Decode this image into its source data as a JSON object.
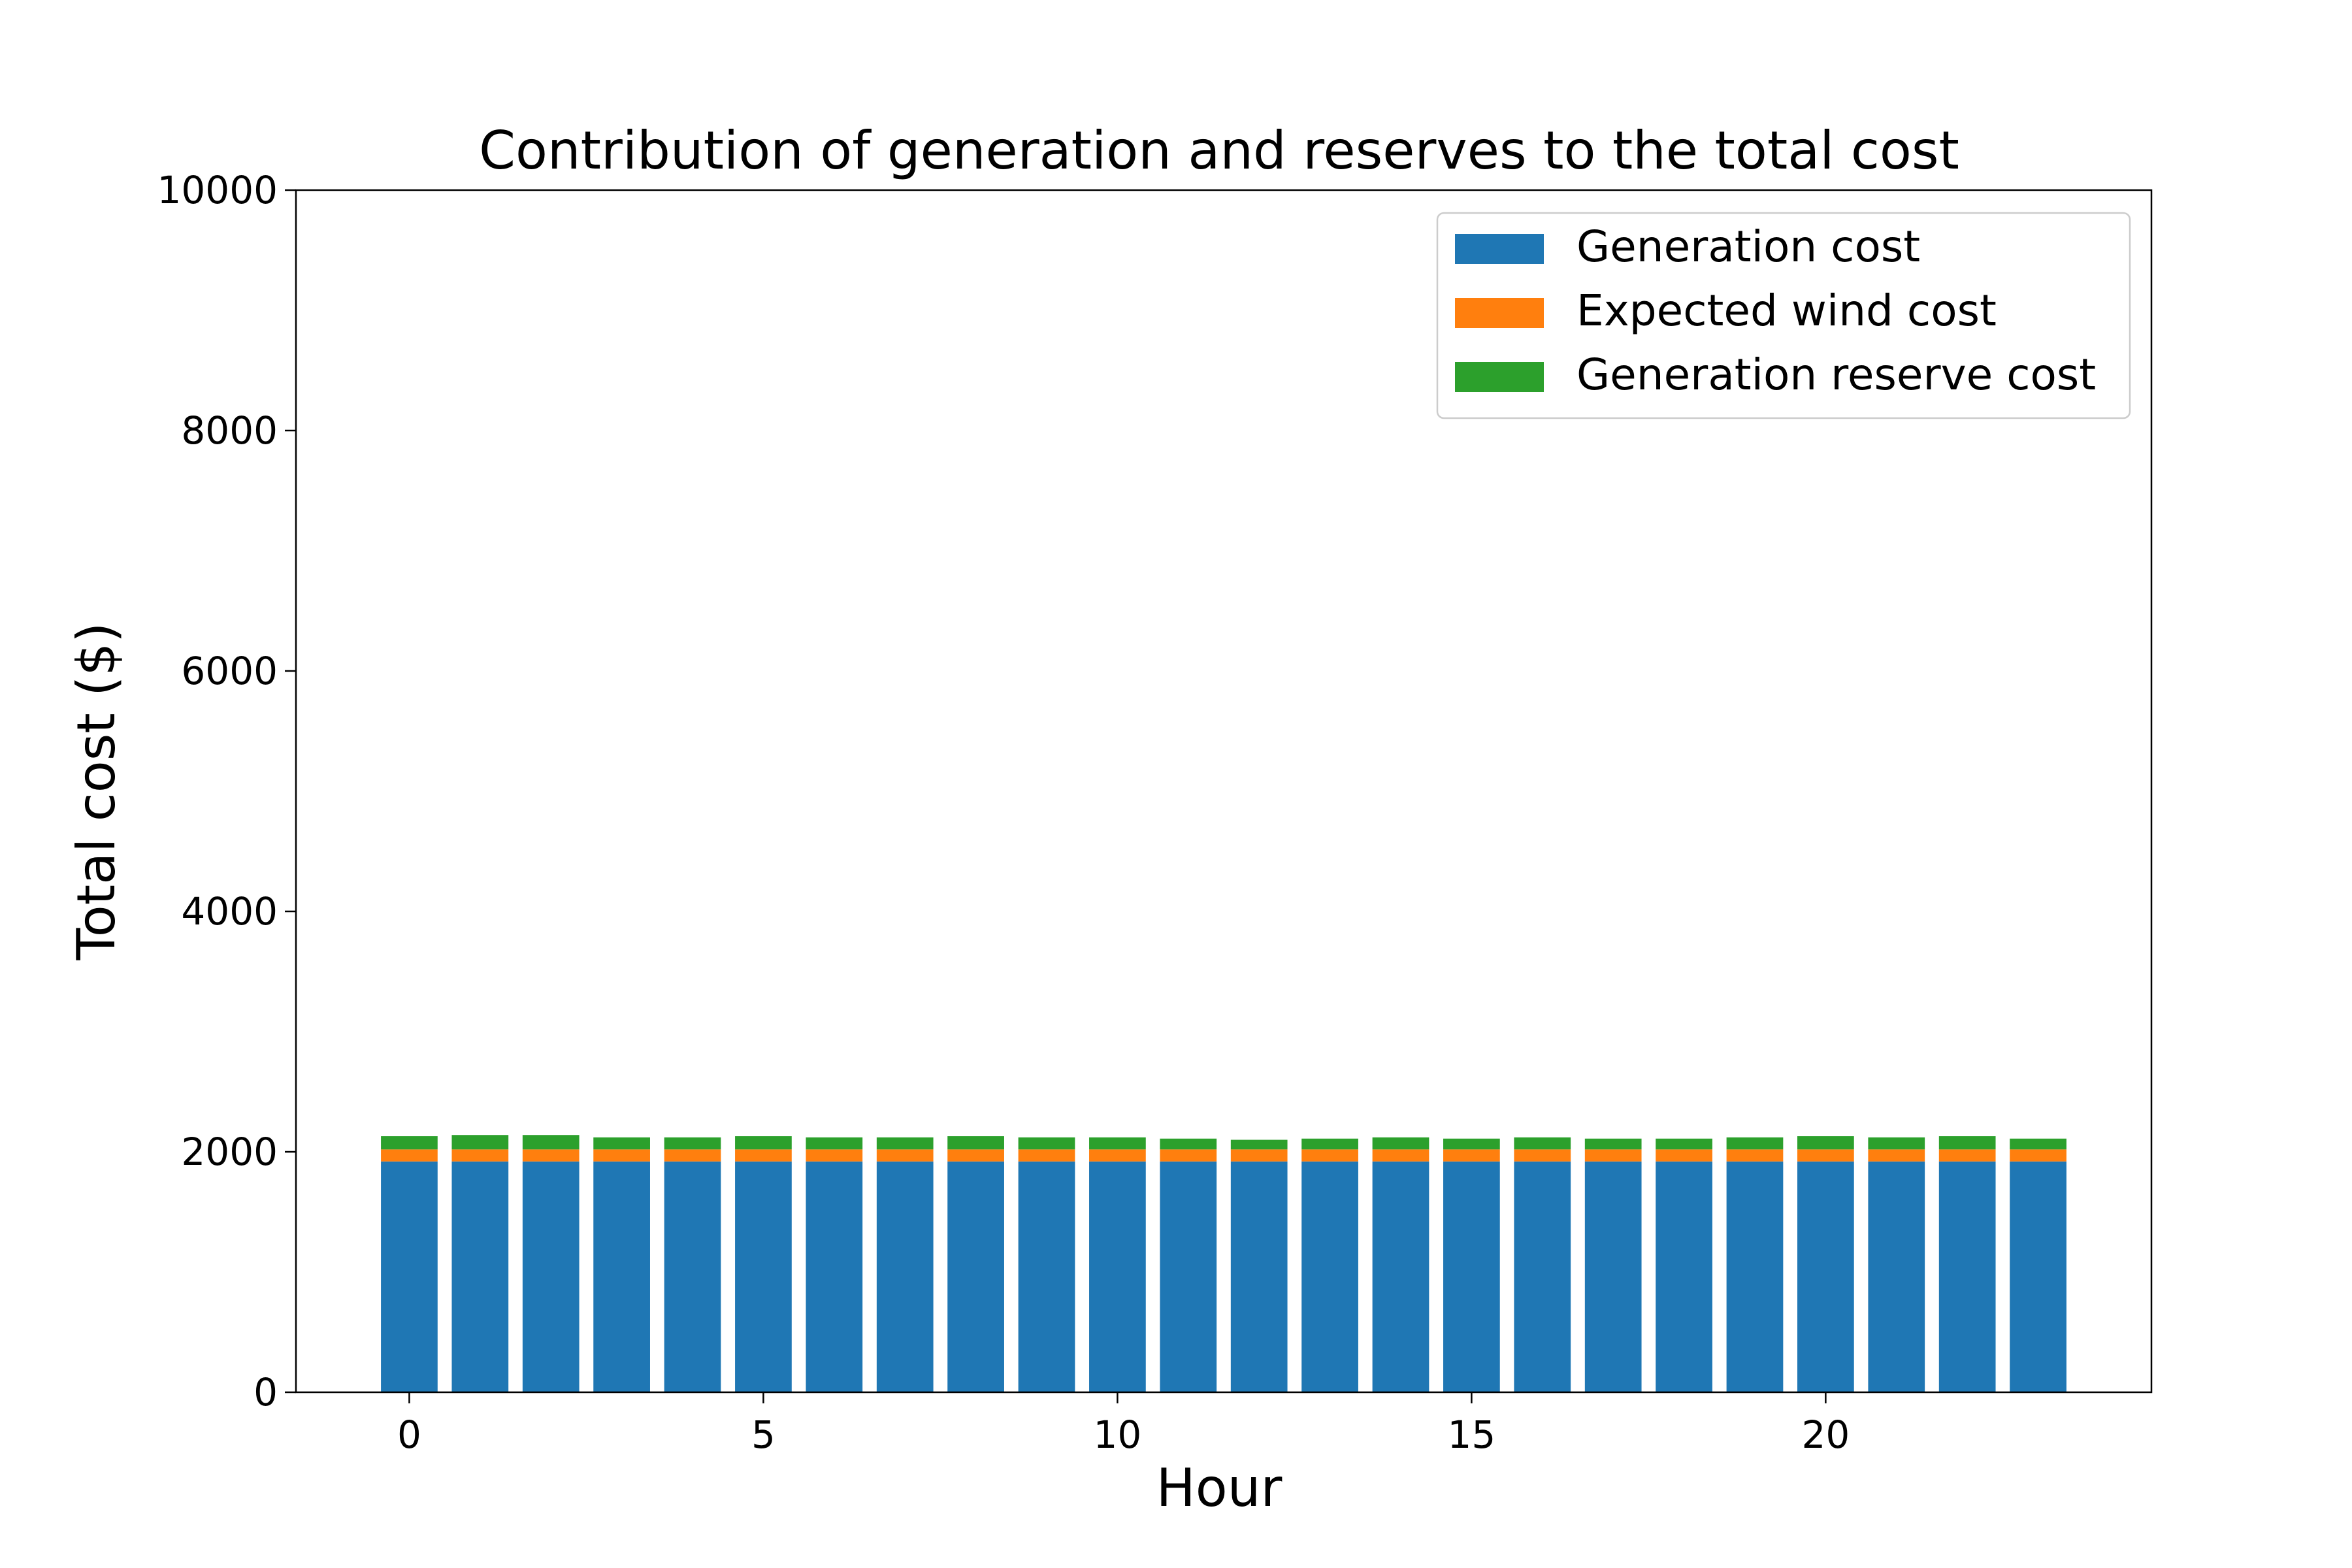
{
  "chart_data": {
    "type": "bar",
    "stacked": true,
    "title": "Contribution of generation and reserves to the total cost",
    "xlabel": "Hour",
    "ylabel": "Total cost ($)",
    "ylim": [
      0,
      10000
    ],
    "xlim": [
      -1.6,
      24.6
    ],
    "yticks": [
      0,
      2000,
      4000,
      6000,
      8000,
      10000
    ],
    "xticks": [
      0,
      5,
      10,
      15,
      20
    ],
    "grid": false,
    "legend_position": "top-right",
    "x": [
      0,
      1,
      2,
      3,
      4,
      5,
      6,
      7,
      8,
      9,
      10,
      11,
      12,
      13,
      14,
      15,
      16,
      17,
      18,
      19,
      20,
      21,
      22,
      23
    ],
    "series": [
      {
        "name": "Generation cost",
        "color": "#1f77b4",
        "values": [
          1920,
          1920,
          1920,
          1920,
          1920,
          1920,
          1920,
          1920,
          1920,
          1920,
          1920,
          1920,
          1920,
          1920,
          1920,
          1920,
          1920,
          1920,
          1920,
          1920,
          1920,
          1920,
          1920,
          1920
        ]
      },
      {
        "name": "Expected wind cost",
        "color": "#ff7f0e",
        "values": [
          100,
          100,
          100,
          100,
          100,
          100,
          100,
          100,
          100,
          100,
          100,
          100,
          100,
          100,
          100,
          100,
          100,
          100,
          100,
          100,
          100,
          100,
          100,
          100
        ]
      },
      {
        "name": "Generation reserve cost",
        "color": "#2ca02c",
        "values": [
          110,
          120,
          120,
          100,
          100,
          110,
          100,
          100,
          110,
          100,
          100,
          90,
          80,
          90,
          100,
          90,
          100,
          90,
          90,
          100,
          110,
          100,
          110,
          90
        ]
      }
    ]
  }
}
